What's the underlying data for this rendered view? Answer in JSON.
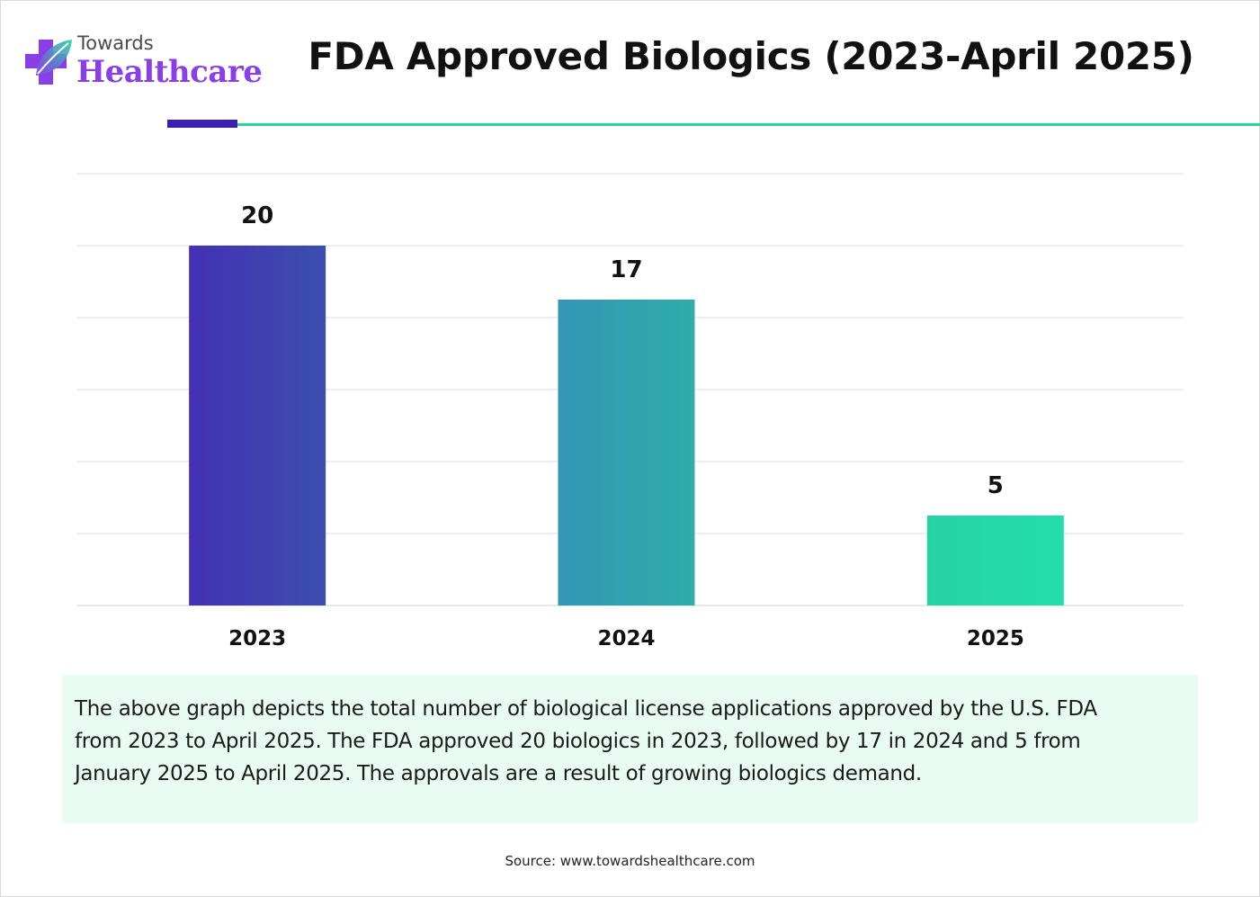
{
  "logo": {
    "line1": "Towards",
    "line2": "Healthcare"
  },
  "colors": {
    "accent_dark": "#3a1fb3",
    "accent_teal": "#2bd3a4",
    "logo_purple": "#8a3ee8",
    "desc_background": "#e9fcf4",
    "bar_gradients": [
      [
        "#4430b4",
        "#3b4fae"
      ],
      [
        "#3396b5",
        "#2eada9"
      ],
      [
        "#26d3a6",
        "#22deaa"
      ]
    ]
  },
  "chart_data": {
    "type": "bar",
    "title": "FDA Approved Biologics (2023-April 2025)",
    "categories": [
      "2023",
      "2024",
      "2025"
    ],
    "values": [
      20,
      17,
      5
    ],
    "ylim": [
      0,
      24
    ],
    "grid": true,
    "legend": "none"
  },
  "description": "The above graph depicts the total number of biological license applications approved by the U.S. FDA from 2023 to April 2025. The FDA approved 20 biologics in 2023, followed by 17 in 2024 and 5 from January 2025 to April 2025. The approvals are a result of growing biologics demand.",
  "source": "Source: www.towardshealthcare.com"
}
